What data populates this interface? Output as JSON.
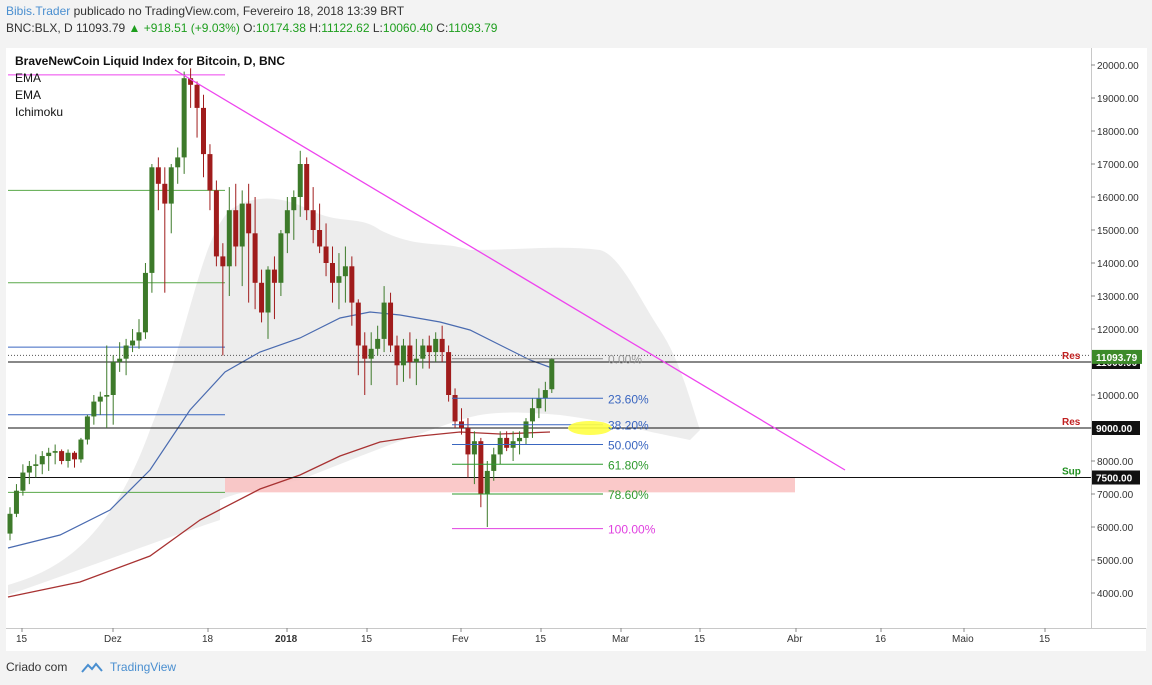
{
  "header": {
    "author": "Bibis.Trader",
    "published": "publicado no TradingView.com, Fevereiro 18, 2018 13:39 BRT",
    "symbol": "BNC:BLX, D",
    "last": "11093.79",
    "change": "▲ +918.51 (+9.03%)",
    "o_label": "O:",
    "o_value": "10174.38",
    "h_label": "H:",
    "h_value": "11122.62",
    "l_label": "L:",
    "l_value": "10060.40",
    "c_label": "C:",
    "c_value": "11093.79"
  },
  "legend": {
    "title": "BraveNewCoin Liquid Index for Bitcoin, D, BNC",
    "items": [
      "EMA",
      "EMA",
      "Ichimoku"
    ]
  },
  "footer": {
    "created": "Criado com",
    "brand": "TradingView"
  },
  "colors": {
    "up_candle": "#3d7a2a",
    "down_candle": "#a01c1c",
    "trendline": "#ee44ee",
    "ema_blue": "#4a6bb0",
    "ema_red": "#a83232",
    "support_zone": "#f9c0c0",
    "green_line": "#5aa84a",
    "fib_blue": "#3a66c0",
    "fib_green": "#2e9a2e",
    "fib_magenta": "#e040e0",
    "highlight": "#ffff44"
  },
  "chart_data": {
    "type": "candlestick",
    "title": "BraveNewCoin Liquid Index for Bitcoin, D, BNC",
    "x_ticks": [
      "15",
      "Dez",
      "18",
      "2018",
      "15",
      "Fev",
      "15",
      "Mar",
      "15",
      "Abr",
      "16",
      "Maio",
      "15"
    ],
    "y_ticks": [
      "20000.00",
      "19000.00",
      "18000.00",
      "17000.00",
      "16000.00",
      "15000.00",
      "14000.00",
      "13000.00",
      "12000.00",
      "11000.00",
      "10000.00",
      "9000.00",
      "8000.00",
      "7000.00",
      "6000.00",
      "5000.00",
      "4000.00"
    ],
    "ylim": [
      3000,
      20500
    ],
    "ohlc": [
      [
        5800,
        6600,
        5600,
        6400
      ],
      [
        6400,
        7300,
        6300,
        7100
      ],
      [
        7100,
        7900,
        6950,
        7650
      ],
      [
        7650,
        8000,
        7300,
        7850
      ],
      [
        7850,
        8200,
        7500,
        7900
      ],
      [
        7900,
        8300,
        7600,
        8150
      ],
      [
        8150,
        8400,
        7700,
        8250
      ],
      [
        8250,
        8500,
        7900,
        8300
      ],
      [
        8300,
        8350,
        7900,
        8000
      ],
      [
        8000,
        8350,
        7800,
        8250
      ],
      [
        8250,
        8300,
        7800,
        8050
      ],
      [
        8050,
        8700,
        7950,
        8650
      ],
      [
        8650,
        9400,
        8500,
        9350
      ],
      [
        9350,
        10000,
        9100,
        9800
      ],
      [
        9800,
        10100,
        9400,
        9950
      ],
      [
        9950,
        11500,
        9000,
        10000
      ],
      [
        10000,
        11200,
        9100,
        11000
      ],
      [
        11000,
        11600,
        10700,
        11100
      ],
      [
        11100,
        11700,
        10600,
        11500
      ],
      [
        11500,
        12000,
        11300,
        11650
      ],
      [
        11650,
        12300,
        11400,
        11900
      ],
      [
        11900,
        14000,
        11700,
        13700
      ],
      [
        13700,
        17000,
        13100,
        16900
      ],
      [
        16900,
        17200,
        15600,
        16400
      ],
      [
        16400,
        16900,
        13100,
        15800
      ],
      [
        15800,
        17000,
        14900,
        16900
      ],
      [
        16900,
        17500,
        16400,
        17200
      ],
      [
        17200,
        19800,
        16700,
        19600
      ],
      [
        19600,
        19900,
        18700,
        19400
      ],
      [
        19400,
        19500,
        17800,
        18700
      ],
      [
        18700,
        19100,
        16600,
        17300
      ],
      [
        17300,
        17600,
        15600,
        16200
      ],
      [
        16200,
        16500,
        13900,
        14200
      ],
      [
        14200,
        14600,
        11200,
        13900
      ],
      [
        13900,
        16300,
        13000,
        15600
      ],
      [
        15600,
        16400,
        13900,
        14500
      ],
      [
        14500,
        16200,
        13300,
        15800
      ],
      [
        15800,
        16400,
        12800,
        14900
      ],
      [
        14900,
        16000,
        12600,
        13400
      ],
      [
        13400,
        13800,
        12200,
        12500
      ],
      [
        12500,
        13900,
        11700,
        13800
      ],
      [
        13800,
        14200,
        12300,
        13400
      ],
      [
        13400,
        15000,
        13000,
        14900
      ],
      [
        14900,
        16000,
        14300,
        15600
      ],
      [
        15600,
        16200,
        14700,
        16000
      ],
      [
        16000,
        17400,
        15400,
        17000
      ],
      [
        17000,
        17200,
        15300,
        15600
      ],
      [
        15600,
        16300,
        14600,
        15000
      ],
      [
        15000,
        15800,
        14300,
        14500
      ],
      [
        14500,
        15200,
        13600,
        14000
      ],
      [
        14000,
        14500,
        12800,
        13400
      ],
      [
        13400,
        14300,
        12600,
        13600
      ],
      [
        13600,
        14500,
        12800,
        13900
      ],
      [
        13900,
        14200,
        12100,
        12800
      ],
      [
        12800,
        12900,
        10600,
        11500
      ],
      [
        11500,
        11900,
        10000,
        11100
      ],
      [
        11100,
        11900,
        10300,
        11400
      ],
      [
        11400,
        12100,
        11200,
        11700
      ],
      [
        11700,
        13300,
        11300,
        12800
      ],
      [
        12800,
        13100,
        11300,
        11500
      ],
      [
        11500,
        11800,
        10300,
        10900
      ],
      [
        10900,
        11700,
        10400,
        11500
      ],
      [
        11500,
        11900,
        10500,
        11000
      ],
      [
        11000,
        11700,
        10300,
        11100
      ],
      [
        11100,
        11700,
        10800,
        11500
      ],
      [
        11500,
        11800,
        10800,
        11300
      ],
      [
        11300,
        11900,
        11000,
        11700
      ],
      [
        11700,
        12100,
        11000,
        11300
      ],
      [
        11300,
        11500,
        9800,
        10000
      ],
      [
        10000,
        10200,
        9000,
        9200
      ],
      [
        9200,
        9600,
        8800,
        9000
      ],
      [
        9000,
        9300,
        7500,
        8200
      ],
      [
        8200,
        8900,
        7300,
        8600
      ],
      [
        8600,
        8700,
        6600,
        7000
      ],
      [
        7000,
        8000,
        6000,
        7700
      ],
      [
        7700,
        8400,
        7400,
        8200
      ],
      [
        8200,
        8900,
        7900,
        8700
      ],
      [
        8700,
        8900,
        8300,
        8400
      ],
      [
        8400,
        8900,
        8000,
        8600
      ],
      [
        8600,
        8900,
        8200,
        8700
      ],
      [
        8700,
        9300,
        8500,
        9200
      ],
      [
        9200,
        9900,
        8700,
        9600
      ],
      [
        9600,
        10200,
        9300,
        9900
      ],
      [
        9900,
        10400,
        9500,
        10150
      ],
      [
        10174.38,
        11122.62,
        10060.4,
        11093.79
      ]
    ],
    "horizontal_levels": [
      {
        "label": "Res",
        "value": 11000,
        "axis_label": "11000.00"
      },
      {
        "label": "Res",
        "value": 9000,
        "axis_label": "9000.00"
      },
      {
        "label": "Sup",
        "value": 7500,
        "axis_label": "7500.00"
      }
    ],
    "last_price_label": "11093.79",
    "fibonacci": [
      {
        "label": "0.00%",
        "value": 11100
      },
      {
        "label": "23.60%",
        "value": 9900
      },
      {
        "label": "38.20%",
        "value": 9100
      },
      {
        "label": "50.00%",
        "value": 8500
      },
      {
        "label": "61.80%",
        "value": 7900
      },
      {
        "label": "78.60%",
        "value": 7000
      },
      {
        "label": "100.00%",
        "value": 5950
      }
    ],
    "support_zone": [
      7050,
      7500
    ],
    "trendline": {
      "from": 19800,
      "to": 7700
    }
  }
}
